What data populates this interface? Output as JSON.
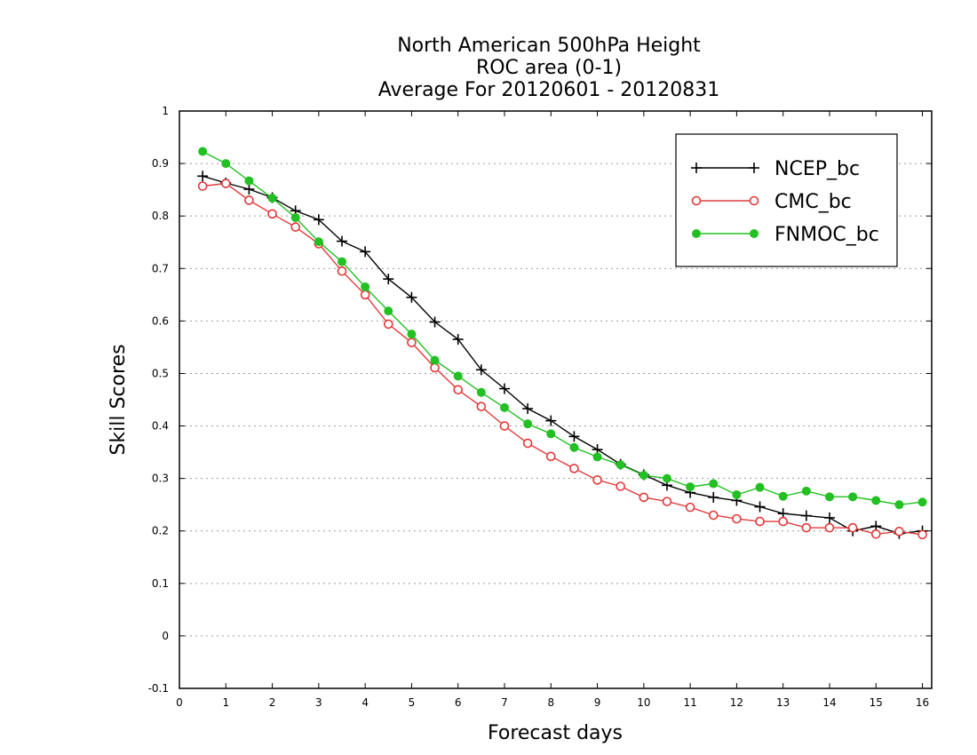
{
  "chart_data": {
    "type": "line",
    "title": [
      "North American 500hPa Height",
      "ROC area (0-1)",
      "Average For 20120601 - 20120831"
    ],
    "xlabel": "Forecast days",
    "ylabel": "Skill Scores",
    "xlim": [
      0,
      16.2
    ],
    "ylim": [
      -0.1,
      1
    ],
    "xticks": [
      "0",
      "1",
      "2",
      "3",
      "4",
      "5",
      "6",
      "7",
      "8",
      "9",
      "10",
      "11",
      "12",
      "13",
      "14",
      "15",
      "16"
    ],
    "yticks": [
      "-0.1",
      "0",
      "0.1",
      "0.2",
      "0.3",
      "0.4",
      "0.5",
      "0.6",
      "0.7",
      "0.8",
      "0.9",
      "1"
    ],
    "grid": "horizontal dotted",
    "legend_position": "top-right",
    "x": [
      0.5,
      1,
      1.5,
      2,
      2.5,
      3,
      3.5,
      4,
      4.5,
      5,
      5.5,
      6,
      6.5,
      7,
      7.5,
      8,
      8.5,
      9,
      9.5,
      10,
      10.5,
      11,
      11.5,
      12,
      12.5,
      13,
      13.5,
      14,
      14.5,
      15,
      15.5,
      16
    ],
    "series": [
      {
        "name": "NCEP_bc",
        "color": "#000000",
        "marker": "plus",
        "values": [
          0.876,
          0.863,
          0.851,
          0.835,
          0.81,
          0.793,
          0.752,
          0.732,
          0.68,
          0.645,
          0.598,
          0.565,
          0.507,
          0.471,
          0.433,
          0.41,
          0.38,
          0.355,
          0.327,
          0.307,
          0.287,
          0.273,
          0.264,
          0.258,
          0.246,
          0.233,
          0.229,
          0.225,
          0.2,
          0.209,
          0.195,
          0.2
        ]
      },
      {
        "name": "CMC_bc",
        "color": "#e03a3a",
        "marker": "open-circle",
        "values": [
          0.857,
          0.862,
          0.83,
          0.804,
          0.779,
          0.747,
          0.695,
          0.65,
          0.594,
          0.559,
          0.511,
          0.469,
          0.437,
          0.4,
          0.367,
          0.342,
          0.319,
          0.297,
          0.285,
          0.264,
          0.256,
          0.245,
          0.23,
          0.223,
          0.218,
          0.218,
          0.206,
          0.206,
          0.206,
          0.194,
          0.199,
          0.193
        ]
      },
      {
        "name": "FNMOC_bc",
        "color": "#22c022",
        "marker": "filled-circle",
        "values": [
          0.923,
          0.9,
          0.867,
          0.834,
          0.797,
          0.751,
          0.713,
          0.665,
          0.619,
          0.575,
          0.525,
          0.495,
          0.464,
          0.435,
          0.404,
          0.385,
          0.359,
          0.341,
          0.326,
          0.306,
          0.3,
          0.284,
          0.29,
          0.269,
          0.283,
          0.266,
          0.276,
          0.265,
          0.265,
          0.258,
          0.25,
          0.255
        ]
      }
    ]
  }
}
